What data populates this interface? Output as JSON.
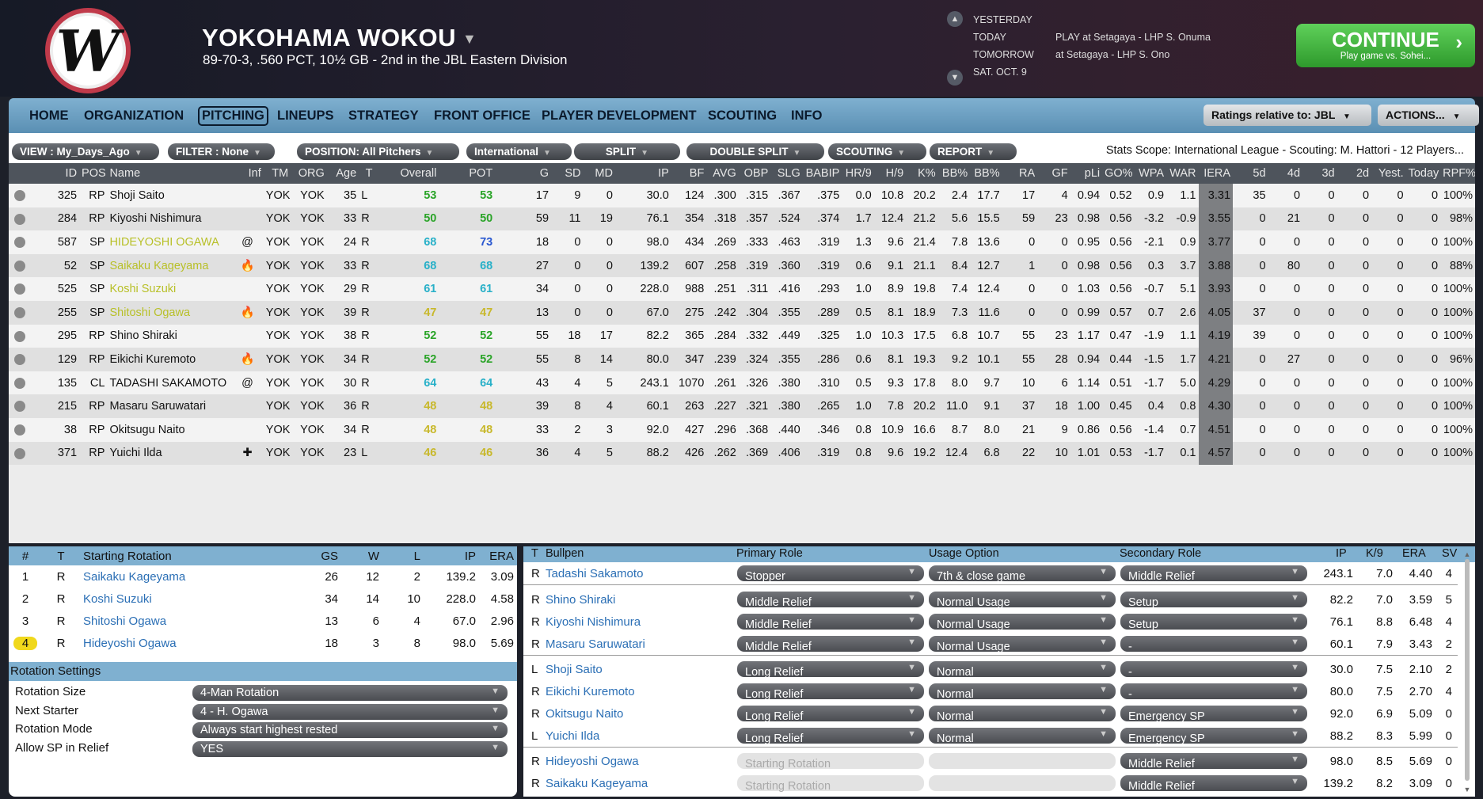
{
  "header": {
    "logo_letter": "W",
    "team": "YOKOHAMA WOKOU",
    "record": "89-70-3, .560 PCT, 10½ GB - 2nd in the JBL Eastern Division",
    "schedule": [
      {
        "day": "YESTERDAY",
        "event": ""
      },
      {
        "day": "TODAY",
        "event": "PLAY at Setagaya - LHP S. Onuma"
      },
      {
        "day": "TOMORROW",
        "event": "at Setagaya - LHP S. Ono"
      },
      {
        "day": "SAT. OCT. 9",
        "event": ""
      }
    ],
    "continue_label": "CONTINUE",
    "continue_sub": "Play game vs. Sohei..."
  },
  "nav": {
    "items": [
      "HOME",
      "ORGANIZATION",
      "PITCHING",
      "LINEUPS",
      "STRATEGY",
      "FRONT OFFICE",
      "PLAYER DEVELOPMENT",
      "SCOUTING",
      "INFO"
    ],
    "active": "PITCHING",
    "ratings": "Ratings relative to: JBL",
    "actions": "ACTIONS..."
  },
  "filters": {
    "view": "VIEW : My_Days_Ago",
    "filter": "FILTER : None",
    "position": "POSITION: All Pitchers",
    "league": "International",
    "split": "SPLIT",
    "double": "DOUBLE SPLIT",
    "scouting": "SCOUTING",
    "report": "REPORT",
    "scope": "Stats Scope: International League - Scouting: M. Hattori - 12 Players..."
  },
  "columns": [
    "",
    "ID",
    "POS",
    "Name",
    "Inf",
    "TM",
    "ORG",
    "Age",
    "T",
    "Overall",
    "POT",
    "G",
    "SD",
    "MD",
    "IP",
    "BF",
    "AVG",
    "OBP",
    "SLG",
    "BABIP",
    "HR/9",
    "H/9",
    "K%",
    "BB%",
    "BB%",
    "RA",
    "GF",
    "pLi",
    "GO%",
    "WPA",
    "WAR",
    "IERA",
    "5d",
    "4d",
    "3d",
    "2d",
    "Yest.",
    "Today",
    "RPF%"
  ],
  "players": [
    [
      "325",
      "RP",
      "Shoji Saito",
      "",
      "YOK",
      "YOK",
      "35",
      "L",
      "53",
      "53",
      "17",
      "9",
      "0",
      "30.0",
      "124",
      ".300",
      ".315",
      ".367",
      ".375",
      "0.0",
      "10.8",
      "20.2",
      "2.4",
      "17.7",
      "17",
      "4",
      "0.94",
      "0.52",
      "0.9",
      "1.1",
      "3.31",
      "35",
      "0",
      "0",
      "0",
      "0",
      "0",
      "100%"
    ],
    [
      "284",
      "RP",
      "Kiyoshi Nishimura",
      "",
      "YOK",
      "YOK",
      "33",
      "R",
      "50",
      "50",
      "59",
      "11",
      "19",
      "76.1",
      "354",
      ".318",
      ".357",
      ".524",
      ".374",
      "1.7",
      "12.4",
      "21.2",
      "5.6",
      "15.5",
      "59",
      "23",
      "0.98",
      "0.56",
      "-3.2",
      "-0.9",
      "3.55",
      "0",
      "21",
      "0",
      "0",
      "0",
      "0",
      "98%"
    ],
    [
      "587",
      "SP",
      "HIDEYOSHI OGAWA",
      "@",
      "YOK",
      "YOK",
      "24",
      "R",
      "68",
      "73",
      "18",
      "0",
      "0",
      "98.0",
      "434",
      ".269",
      ".333",
      ".463",
      ".319",
      "1.3",
      "9.6",
      "21.4",
      "7.8",
      "13.6",
      "0",
      "0",
      "0.95",
      "0.56",
      "-2.1",
      "0.9",
      "3.77",
      "0",
      "0",
      "0",
      "0",
      "0",
      "0",
      "100%"
    ],
    [
      "52",
      "SP",
      "Saikaku Kageyama",
      "🔥",
      "YOK",
      "YOK",
      "33",
      "R",
      "68",
      "68",
      "27",
      "0",
      "0",
      "139.2",
      "607",
      ".258",
      ".319",
      ".360",
      ".319",
      "0.6",
      "9.1",
      "21.1",
      "8.4",
      "12.7",
      "1",
      "0",
      "0.98",
      "0.56",
      "0.3",
      "3.7",
      "3.88",
      "0",
      "80",
      "0",
      "0",
      "0",
      "0",
      "88%"
    ],
    [
      "525",
      "SP",
      "Koshi Suzuki",
      "",
      "YOK",
      "YOK",
      "29",
      "R",
      "61",
      "61",
      "34",
      "0",
      "0",
      "228.0",
      "988",
      ".251",
      ".311",
      ".416",
      ".293",
      "1.0",
      "8.9",
      "19.8",
      "7.4",
      "12.4",
      "0",
      "0",
      "1.03",
      "0.56",
      "-0.7",
      "5.1",
      "3.93",
      "0",
      "0",
      "0",
      "0",
      "0",
      "0",
      "100%"
    ],
    [
      "255",
      "SP",
      "Shitoshi Ogawa",
      "🔥",
      "YOK",
      "YOK",
      "39",
      "R",
      "47",
      "47",
      "13",
      "0",
      "0",
      "67.0",
      "275",
      ".242",
      ".304",
      ".355",
      ".289",
      "0.5",
      "8.1",
      "18.9",
      "7.3",
      "11.6",
      "0",
      "0",
      "0.99",
      "0.57",
      "0.7",
      "2.6",
      "4.05",
      "37",
      "0",
      "0",
      "0",
      "0",
      "0",
      "100%"
    ],
    [
      "295",
      "RP",
      "Shino Shiraki",
      "",
      "YOK",
      "YOK",
      "38",
      "R",
      "52",
      "52",
      "55",
      "18",
      "17",
      "82.2",
      "365",
      ".284",
      ".332",
      ".449",
      ".325",
      "1.0",
      "10.3",
      "17.5",
      "6.8",
      "10.7",
      "55",
      "23",
      "1.17",
      "0.47",
      "-1.9",
      "1.1",
      "4.19",
      "39",
      "0",
      "0",
      "0",
      "0",
      "0",
      "100%"
    ],
    [
      "129",
      "RP",
      "Eikichi Kuremoto",
      "🔥",
      "YOK",
      "YOK",
      "34",
      "R",
      "52",
      "52",
      "55",
      "8",
      "14",
      "80.0",
      "347",
      ".239",
      ".324",
      ".355",
      ".286",
      "0.6",
      "8.1",
      "19.3",
      "9.2",
      "10.1",
      "55",
      "28",
      "0.94",
      "0.44",
      "-1.5",
      "1.7",
      "4.21",
      "0",
      "27",
      "0",
      "0",
      "0",
      "0",
      "96%"
    ],
    [
      "135",
      "CL",
      "TADASHI SAKAMOTO",
      "@",
      "YOK",
      "YOK",
      "30",
      "R",
      "64",
      "64",
      "43",
      "4",
      "5",
      "243.1",
      "1070",
      ".261",
      ".326",
      ".380",
      ".310",
      "0.5",
      "9.3",
      "17.8",
      "8.0",
      "9.7",
      "10",
      "6",
      "1.14",
      "0.51",
      "-1.7",
      "5.0",
      "4.29",
      "0",
      "0",
      "0",
      "0",
      "0",
      "0",
      "100%"
    ],
    [
      "215",
      "RP",
      "Masaru Saruwatari",
      "",
      "YOK",
      "YOK",
      "36",
      "R",
      "48",
      "48",
      "39",
      "8",
      "4",
      "60.1",
      "263",
      ".227",
      ".321",
      ".380",
      ".265",
      "1.0",
      "7.8",
      "20.2",
      "11.0",
      "9.1",
      "37",
      "18",
      "1.00",
      "0.45",
      "0.4",
      "0.8",
      "4.30",
      "0",
      "0",
      "0",
      "0",
      "0",
      "0",
      "100%"
    ],
    [
      "38",
      "RP",
      "Okitsugu Naito",
      "",
      "YOK",
      "YOK",
      "34",
      "R",
      "48",
      "48",
      "33",
      "2",
      "3",
      "92.0",
      "427",
      ".296",
      ".368",
      ".440",
      ".346",
      "0.8",
      "10.9",
      "16.6",
      "8.7",
      "8.0",
      "21",
      "9",
      "0.86",
      "0.56",
      "-1.4",
      "0.7",
      "4.51",
      "0",
      "0",
      "0",
      "0",
      "0",
      "0",
      "100%"
    ],
    [
      "371",
      "RP",
      "Yuichi Ilda",
      "✚",
      "YOK",
      "YOK",
      "23",
      "L",
      "46",
      "46",
      "36",
      "4",
      "5",
      "88.2",
      "426",
      ".262",
      ".369",
      ".406",
      ".319",
      "0.8",
      "9.6",
      "19.2",
      "12.4",
      "6.8",
      "22",
      "10",
      "1.01",
      "0.53",
      "-1.7",
      "0.1",
      "4.57",
      "0",
      "0",
      "0",
      "0",
      "0",
      "0",
      "100%"
    ]
  ],
  "rotation": {
    "headers": [
      "#",
      "T",
      "Starting Rotation",
      "GS",
      "W",
      "L",
      "IP",
      "ERA"
    ],
    "rows": [
      [
        "1",
        "R",
        "Saikaku Kageyama",
        "26",
        "12",
        "2",
        "139.2",
        "3.09"
      ],
      [
        "2",
        "R",
        "Koshi Suzuki",
        "34",
        "14",
        "10",
        "228.0",
        "4.58"
      ],
      [
        "3",
        "R",
        "Shitoshi Ogawa",
        "13",
        "6",
        "4",
        "67.0",
        "2.96"
      ],
      [
        "4",
        "R",
        "Hideyoshi Ogawa",
        "18",
        "3",
        "8",
        "98.0",
        "5.69"
      ]
    ],
    "settings_title": "Rotation Settings",
    "settings": [
      [
        "Rotation Size",
        "4-Man Rotation"
      ],
      [
        "Next Starter",
        "4 - H. Ogawa"
      ],
      [
        "Rotation Mode",
        "Always start highest rested"
      ],
      [
        "Allow SP in Relief",
        "YES"
      ]
    ]
  },
  "bullpen": {
    "headers": [
      "T",
      "Bullpen",
      "Primary Role",
      "Usage Option",
      "Secondary Role",
      "IP",
      "K/9",
      "ERA",
      "SV"
    ],
    "rows": [
      [
        "R",
        "Tadashi Sakamoto",
        "Stopper",
        "7th & close game",
        "Middle Relief",
        "243.1",
        "7.0",
        "4.40",
        "4"
      ],
      [
        "R",
        "Shino Shiraki",
        "Middle Relief",
        "Normal Usage",
        "Setup",
        "82.2",
        "7.0",
        "3.59",
        "5"
      ],
      [
        "R",
        "Kiyoshi Nishimura",
        "Middle Relief",
        "Normal Usage",
        "Setup",
        "76.1",
        "8.8",
        "6.48",
        "4"
      ],
      [
        "R",
        "Masaru Saruwatari",
        "Middle Relief",
        "Normal Usage",
        "-",
        "60.1",
        "7.9",
        "3.43",
        "2"
      ],
      [
        "L",
        "Shoji Saito",
        "Long Relief",
        "Normal",
        "-",
        "30.0",
        "7.5",
        "2.10",
        "2"
      ],
      [
        "R",
        "Eikichi Kuremoto",
        "Long Relief",
        "Normal",
        "-",
        "80.0",
        "7.5",
        "2.70",
        "4"
      ],
      [
        "R",
        "Okitsugu Naito",
        "Long Relief",
        "Normal",
        "Emergency SP",
        "92.0",
        "6.9",
        "5.09",
        "0"
      ],
      [
        "L",
        "Yuichi Ilda",
        "Long Relief",
        "Normal",
        "Emergency SP",
        "88.2",
        "8.3",
        "5.99",
        "0"
      ],
      [
        "R",
        "Hideyoshi Ogawa",
        "Starting Rotation",
        "",
        "Middle Relief",
        "98.0",
        "8.5",
        "5.69",
        "0"
      ],
      [
        "R",
        "Saikaku Kageyama",
        "Starting Rotation",
        "",
        "Middle Relief",
        "139.2",
        "8.2",
        "3.09",
        "0"
      ]
    ]
  }
}
